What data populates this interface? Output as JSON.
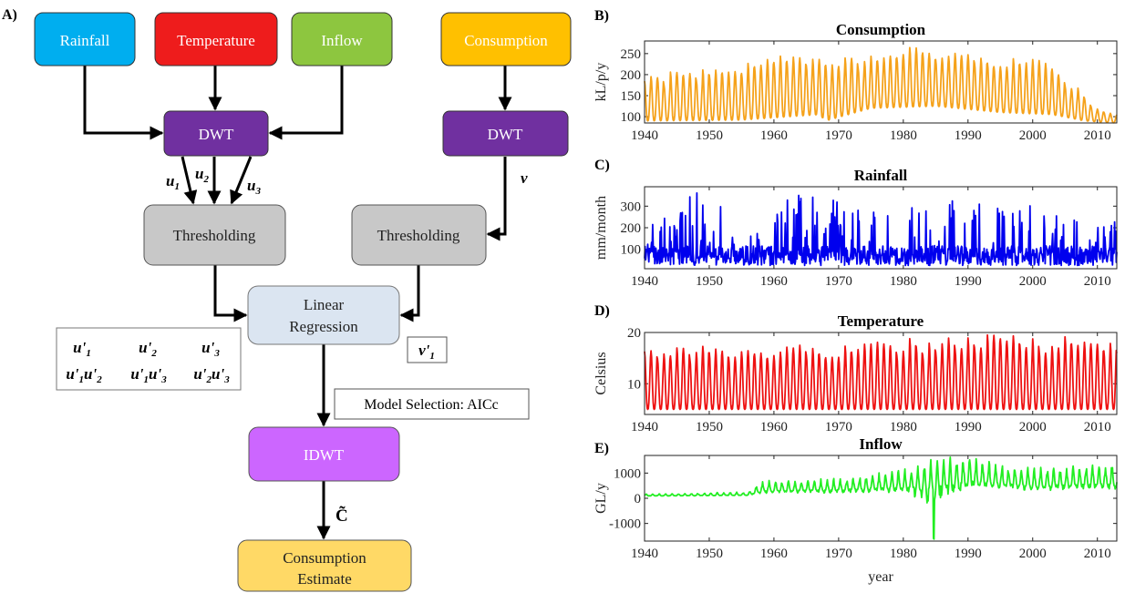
{
  "panel_letters": {
    "a": "A)",
    "b": "B)",
    "c": "C)",
    "d": "D)",
    "e": "E)"
  },
  "diagram": {
    "inputs": {
      "rainfall": "Rainfall",
      "temperature": "Temperature",
      "inflow": "Inflow",
      "consumption": "Consumption"
    },
    "dwt_left": "DWT",
    "dwt_right": "DWT",
    "threshold_left": "Thresholding",
    "threshold_right": "Thresholding",
    "regression_line1": "Linear",
    "regression_line2": "Regression",
    "model_selection": "Model Selection: AICc",
    "idwt": "IDWT",
    "estimate_line1": "Consumption",
    "estimate_line2": "Estimate",
    "v_label": "v",
    "c_tilde": "C̃",
    "u_labels": [
      {
        "base": "u",
        "sub": "1"
      },
      {
        "base": "u",
        "sub": "2"
      },
      {
        "base": "u",
        "sub": "3"
      }
    ],
    "v_prime": {
      "base": "v'",
      "sub": "1"
    },
    "u_prime_terms": [
      [
        {
          "base": "u'",
          "sub": "1"
        }
      ],
      [
        {
          "base": "u'",
          "sub": "2"
        }
      ],
      [
        {
          "base": "u'",
          "sub": "3"
        }
      ],
      [
        {
          "base": "u'",
          "sub": "1"
        },
        {
          "base": "u'",
          "sub": "2"
        }
      ],
      [
        {
          "base": "u'",
          "sub": "1"
        },
        {
          "base": "u'",
          "sub": "3"
        }
      ],
      [
        {
          "base": "u'",
          "sub": "2"
        },
        {
          "base": "u'",
          "sub": "3"
        }
      ]
    ],
    "colors": {
      "rainfall": "#00aeef",
      "temperature": "#ee1c1c",
      "inflow": "#8dc63f",
      "consumption": "#ffc000",
      "dwt": "#7030a0",
      "threshold": "#c8c8c8",
      "regression": "#dbe5f1",
      "idwt": "#cc66ff",
      "estimate": "#ffd966"
    }
  },
  "chart_data": [
    {
      "type": "line",
      "title": "Consumption",
      "xlabel": "",
      "ylabel": "kL/p/y",
      "xlim": [
        1940,
        2013
      ],
      "ylim": [
        85,
        280
      ],
      "xticks": [
        "1940",
        "1950",
        "1960",
        "1970",
        "1980",
        "1990",
        "2000",
        "2010"
      ],
      "yticks": [
        "100",
        "150",
        "200",
        "250"
      ],
      "color": "#f5a21b",
      "x_range": [
        1940,
        2013
      ],
      "points_per_year": 12,
      "trend": [
        [
          1940,
          130
        ],
        [
          1955,
          165
        ],
        [
          1965,
          185
        ],
        [
          1968,
          190
        ],
        [
          1969,
          160
        ],
        [
          1975,
          180
        ],
        [
          1980,
          205
        ],
        [
          1983,
          195
        ],
        [
          1990,
          185
        ],
        [
          2000,
          175
        ],
        [
          2004,
          145
        ],
        [
          2008,
          115
        ],
        [
          2013,
          95
        ]
      ],
      "peaks": [
        [
          1940,
          200
        ],
        [
          1950,
          215
        ],
        [
          1961,
          250
        ],
        [
          1968,
          240
        ],
        [
          1977,
          245
        ],
        [
          1981,
          280
        ],
        [
          1990,
          250
        ],
        [
          1997,
          245
        ],
        [
          2001,
          240
        ],
        [
          2005,
          200
        ],
        [
          2010,
          120
        ],
        [
          2013,
          105
        ]
      ],
      "troughs": [
        [
          1940,
          90
        ],
        [
          1955,
          92
        ],
        [
          1967,
          105
        ],
        [
          1968,
          90
        ],
        [
          1975,
          120
        ],
        [
          1985,
          125
        ],
        [
          1995,
          110
        ],
        [
          2003,
          105
        ],
        [
          2008,
          90
        ],
        [
          2013,
          85
        ]
      ]
    },
    {
      "type": "line",
      "title": "Rainfall",
      "xlabel": "",
      "ylabel": "mm/month",
      "xlim": [
        1940,
        2013
      ],
      "ylim": [
        10,
        390
      ],
      "xticks": [
        "1940",
        "1950",
        "1960",
        "1970",
        "1980",
        "1990",
        "2000",
        "2010"
      ],
      "yticks": [
        "100",
        "200",
        "300"
      ],
      "color": "#0000ee",
      "x_range": [
        1940,
        2013
      ],
      "points_per_year": 12,
      "trend": [
        [
          1940,
          100
        ],
        [
          2013,
          100
        ]
      ],
      "peaks": [
        [
          1940,
          220
        ],
        [
          1952,
          390
        ],
        [
          1961,
          340
        ],
        [
          1975,
          300
        ],
        [
          1990,
          300
        ],
        [
          2005,
          260
        ],
        [
          2013,
          230
        ]
      ],
      "troughs": [
        [
          1940,
          25
        ],
        [
          2013,
          25
        ]
      ]
    },
    {
      "type": "line",
      "title": "Temperature",
      "xlabel": "",
      "ylabel": "Celsius",
      "xlim": [
        1940,
        2013
      ],
      "ylim": [
        4,
        20
      ],
      "xticks": [
        "1940",
        "1950",
        "1960",
        "1970",
        "1980",
        "1990",
        "2000",
        "2010"
      ],
      "yticks": [
        "10",
        "20"
      ],
      "color": "#ee1111",
      "x_range": [
        1940,
        2013
      ],
      "points_per_year": 12,
      "trend": [
        [
          1940,
          11
        ],
        [
          2013,
          11.5
        ]
      ],
      "peaks": [
        [
          1940,
          17
        ],
        [
          1970,
          18
        ],
        [
          1997,
          20
        ],
        [
          2013,
          19
        ]
      ],
      "troughs": [
        [
          1940,
          5
        ],
        [
          2013,
          5
        ]
      ]
    },
    {
      "type": "line",
      "title": "Inflow",
      "xlabel": "year",
      "ylabel": "GL/y",
      "xlim": [
        1940,
        2013
      ],
      "ylim": [
        -1700,
        1700
      ],
      "xticks": [
        "1940",
        "1950",
        "1960",
        "1970",
        "1980",
        "1990",
        "2000",
        "2010"
      ],
      "yticks": [
        "-1000",
        "0",
        "1000"
      ],
      "color": "#22ee22",
      "x_range": [
        1940,
        2013
      ],
      "points_per_year": 12,
      "trend": [
        [
          1940,
          100
        ],
        [
          1956,
          130
        ],
        [
          1958,
          300
        ],
        [
          1970,
          350
        ],
        [
          1980,
          450
        ],
        [
          1984,
          450
        ],
        [
          1990,
          700
        ],
        [
          2000,
          500
        ],
        [
          2013,
          600
        ]
      ],
      "peaks": [
        [
          1940,
          180
        ],
        [
          1956,
          250
        ],
        [
          1958,
          700
        ],
        [
          1970,
          800
        ],
        [
          1980,
          1200
        ],
        [
          1985,
          1700
        ],
        [
          1991,
          1650
        ],
        [
          2000,
          1300
        ],
        [
          2013,
          1400
        ]
      ],
      "troughs": [
        [
          1940,
          60
        ],
        [
          1956,
          80
        ],
        [
          1958,
          0
        ],
        [
          1970,
          0
        ],
        [
          1980,
          -100
        ],
        [
          1985,
          -1700
        ],
        [
          1990,
          0
        ],
        [
          2013,
          0
        ]
      ]
    }
  ]
}
